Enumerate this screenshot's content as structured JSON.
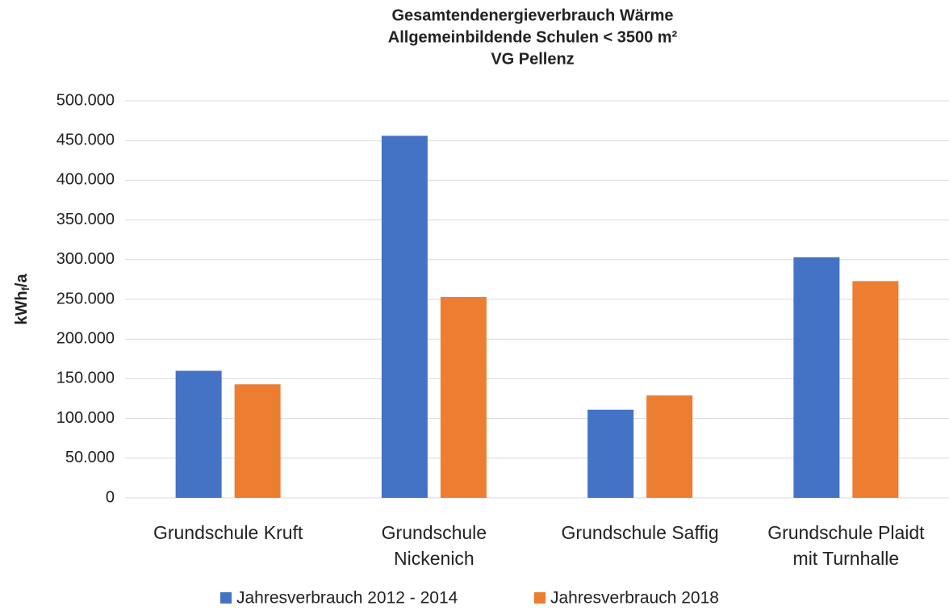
{
  "chart_data": {
    "type": "bar",
    "title": [
      "Gesamtendenergieverbrauch Wärme",
      "Allgemeinbildende Schulen < 3500 m²",
      "VG Pellenz"
    ],
    "y_label": [
      "kWh",
      "f",
      "/a"
    ],
    "categories": [
      "Grundschule Kruft",
      "Grundschule Nickenich",
      "Grundschule Saffig",
      "Grundschule Plaidt mit Turnhalle"
    ],
    "series": [
      {
        "name": "Jahresverbrauch 2012 - 2014",
        "color": "#4472c4",
        "values": [
          160000,
          456000,
          111000,
          303000
        ]
      },
      {
        "name": "Jahresverbrauch 2018",
        "color": "#ed7d31",
        "values": [
          143000,
          253000,
          129000,
          273000
        ]
      }
    ],
    "ylim": [
      0,
      500000
    ],
    "yticks": [
      0,
      {
        "value": 50000,
        "label": "50.000"
      },
      {
        "value": 100000,
        "label": "100.000"
      },
      {
        "value": 150000,
        "label": "150.000"
      },
      {
        "value": 200000,
        "label": "200.000"
      },
      {
        "value": 250000,
        "label": "250.000"
      },
      {
        "value": 300000,
        "label": "300.000"
      },
      {
        "value": 350000,
        "label": "350.000"
      },
      {
        "value": 400000,
        "label": "400.000"
      },
      {
        "value": 450000,
        "label": "450.000"
      },
      {
        "value": 500000,
        "label": "500.000"
      }
    ],
    "grid": true,
    "legend": "bottom"
  }
}
